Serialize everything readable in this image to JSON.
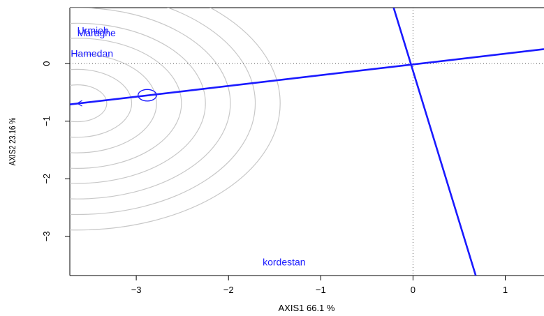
{
  "chart_data": {
    "type": "scatter",
    "title": "",
    "xlabel": "AXIS1 66.1 %",
    "ylabel": "AXIS2 23.16 %",
    "xlim": [
      -3.72,
      1.42
    ],
    "ylim": [
      -3.68,
      0.97
    ],
    "x_ticks": [
      -3,
      -2,
      -1,
      0,
      1
    ],
    "x_tick_labels": [
      "−3",
      "−2",
      "−1",
      "0",
      "1"
    ],
    "y_ticks": [
      -3,
      -2,
      -1,
      0
    ],
    "y_tick_labels": [
      "−3",
      "−2",
      "−1",
      "0"
    ],
    "reference_lines": {
      "x": 0,
      "y": 0,
      "style": "dotted"
    },
    "points": [
      {
        "label": "Urmieh",
        "x": -3.64,
        "y": 0.56
      },
      {
        "label": "Maraghe",
        "x": -3.64,
        "y": 0.52
      },
      {
        "label": "Hamedan",
        "x": -3.71,
        "y": 0.16
      },
      {
        "label": "kordestan",
        "x": -1.63,
        "y": -3.46
      }
    ],
    "axis_lines": [
      {
        "name": "",
        "x1": -3.72,
        "y1": -0.71,
        "x2": 1.42,
        "y2": 0.25
      },
      {
        "name": "",
        "x1": -0.21,
        "y1": 0.97,
        "x2": 0.68,
        "y2": -3.68
      }
    ],
    "contours": {
      "center": {
        "x": -3.64,
        "y": -0.69
      },
      "radii": [
        0.32,
        0.59,
        0.86,
        1.13,
        1.39,
        1.66,
        1.93,
        2.2
      ]
    },
    "marker": {
      "x": -2.88,
      "y": -0.55,
      "radius": 0.1
    },
    "arrow_tip": {
      "x": -3.64,
      "y": -0.69
    },
    "grid": false,
    "colors": {
      "points": "#1a1aff",
      "lines": "#1a1aff",
      "contours": "#c8c8c8",
      "reference": "#555555"
    }
  }
}
